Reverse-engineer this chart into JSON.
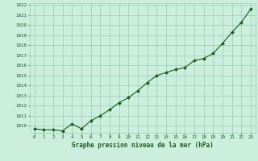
{
  "x": [
    0,
    1,
    2,
    3,
    4,
    5,
    6,
    7,
    8,
    9,
    10,
    11,
    12,
    13,
    14,
    15,
    16,
    17,
    18,
    19,
    20,
    21,
    22,
    23
  ],
  "y": [
    1009.7,
    1009.6,
    1009.6,
    1009.5,
    1010.2,
    1009.7,
    1010.5,
    1011.0,
    1011.6,
    1012.3,
    1012.8,
    1013.5,
    1014.3,
    1015.0,
    1015.3,
    1015.6,
    1015.8,
    1016.5,
    1016.7,
    1017.2,
    1018.2,
    1019.3,
    1020.3,
    1021.6
  ],
  "ylim": [
    1009.3,
    1022.2
  ],
  "yticks": [
    1010,
    1011,
    1012,
    1013,
    1014,
    1015,
    1016,
    1017,
    1018,
    1019,
    1020,
    1021,
    1022
  ],
  "xticks": [
    0,
    1,
    2,
    3,
    4,
    5,
    6,
    7,
    8,
    9,
    10,
    11,
    12,
    13,
    14,
    15,
    16,
    17,
    18,
    19,
    20,
    21,
    22,
    23
  ],
  "line_color": "#1a5c1a",
  "marker_color": "#1a5c1a",
  "bg_color": "#cceedd",
  "grid_color": "#99ccbb",
  "xlabel": "Graphe pression niveau de la mer (hPa)",
  "xlabel_color": "#1a5c1a",
  "tick_color": "#1a5c1a"
}
